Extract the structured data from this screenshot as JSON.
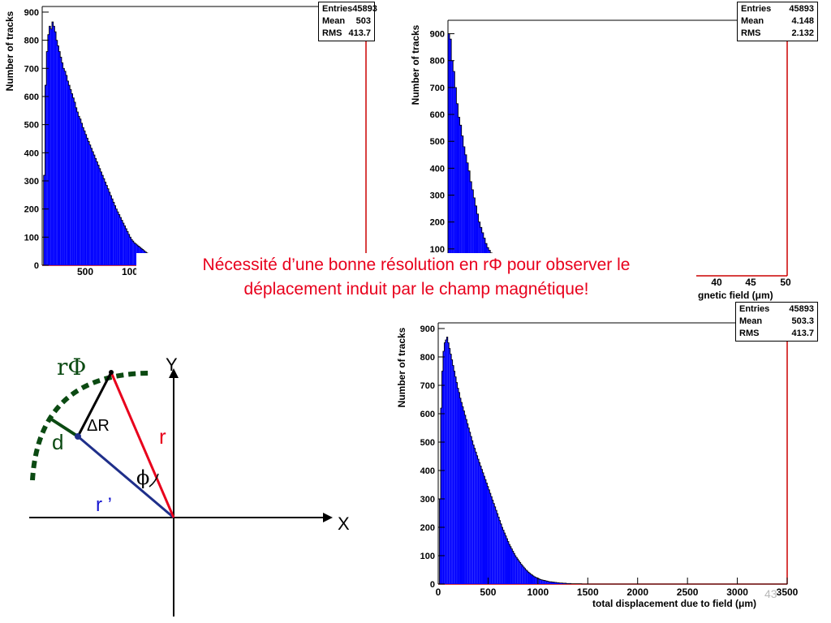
{
  "slide": {
    "caption_line1": "Nécessité d’une bonne résolution en rΦ pour observer le",
    "caption_line2": "déplacement induit par le champ magnétique!",
    "caption_color": "#e8001c",
    "page_number": "43"
  },
  "colors": {
    "histogram_fill": "#0000ff",
    "histogram_edge": "#000000",
    "frame_edge": "#cc0000",
    "arc": "#0b4a12",
    "r_line": "#e8001c",
    "r_prime_line": "#1f2f8a",
    "d_label": "#0b4a12",
    "r_prime_label": "#1515d0",
    "phi_label": "#0b4a12"
  },
  "chart_data": [
    {
      "type": "bar",
      "subtype": "histogram",
      "ylabel": "Number of tracks",
      "xlabel": "",
      "xlim": [
        0,
        2800
      ],
      "ylim": [
        0,
        920
      ],
      "x_ticks_visible": [
        "500",
        "100"
      ],
      "y_ticks": [
        "0",
        "100",
        "200",
        "300",
        "400",
        "500",
        "600",
        "700",
        "800",
        "900"
      ],
      "stats": {
        "entries_label": "Entries",
        "entries": "45893",
        "mean_label": "Mean",
        "mean": "503",
        "rms_label": "RMS",
        "rms": "413.7"
      },
      "bin_width": 12,
      "x_start": 0,
      "values": [
        0,
        320,
        640,
        760,
        820,
        850,
        840,
        865,
        850,
        830,
        800,
        780,
        760,
        740,
        720,
        700,
        690,
        675,
        655,
        640,
        625,
        610,
        595,
        580,
        560,
        545,
        530,
        520,
        505,
        490,
        478,
        465,
        452,
        440,
        428,
        416,
        404,
        392,
        380,
        368,
        356,
        344,
        332,
        320,
        308,
        296,
        284,
        272,
        260,
        248,
        236,
        224,
        212,
        200,
        190,
        180,
        170,
        160,
        150,
        140,
        130,
        120,
        110,
        100,
        92,
        86,
        80,
        76,
        72,
        68,
        64,
        60,
        56,
        52,
        48,
        44,
        40,
        36,
        32,
        28,
        24,
        20
      ]
    },
    {
      "type": "bar",
      "subtype": "histogram",
      "ylabel": "Number of tracks",
      "xlabel": "gnetic field (μm)",
      "xlim": [
        0,
        50
      ],
      "ylim": [
        0,
        950
      ],
      "x_ticks_visible": [
        "40",
        "45",
        "50"
      ],
      "y_ticks": [
        "0",
        "100",
        "200",
        "300",
        "400",
        "500",
        "600",
        "700",
        "800",
        "900"
      ],
      "stats": {
        "entries_label": "Entries",
        "entries": "45893",
        "mean_label": "Mean",
        "mean": "4.148",
        "rms_label": "RMS",
        "rms": "2.132"
      },
      "bin_width": 0.25,
      "x_start": 0,
      "values": [
        900,
        880,
        800,
        760,
        700,
        640,
        590,
        560,
        520,
        480,
        450,
        420,
        390,
        350,
        320,
        290,
        260,
        230,
        200,
        180,
        160,
        140,
        120,
        105,
        95,
        85,
        75,
        65,
        55,
        48,
        42,
        36,
        30,
        25,
        20,
        16,
        12,
        9,
        6,
        4,
        2,
        1
      ]
    },
    {
      "type": "bar",
      "subtype": "histogram",
      "ylabel": "Number of tracks",
      "xlabel": "total displacement due to field (μm)",
      "xlim": [
        0,
        3500
      ],
      "ylim": [
        0,
        920
      ],
      "x_ticks": [
        "0",
        "500",
        "1000",
        "1500",
        "2000",
        "2500",
        "3000",
        "3500"
      ],
      "y_ticks": [
        "0",
        "100",
        "200",
        "300",
        "400",
        "500",
        "600",
        "700",
        "800",
        "900"
      ],
      "stats": {
        "entries_label": "Entries",
        "entries": "45893",
        "mean_label": "Mean",
        "mean": "503.3",
        "rms_label": "RMS",
        "rms": "413.7"
      },
      "bin_width": 12,
      "x_start": 0,
      "values": [
        0,
        300,
        620,
        750,
        820,
        850,
        860,
        870,
        850,
        830,
        810,
        790,
        770,
        750,
        730,
        710,
        690,
        675,
        655,
        640,
        625,
        610,
        595,
        580,
        565,
        550,
        535,
        520,
        505,
        490,
        478,
        465,
        452,
        440,
        428,
        416,
        404,
        392,
        380,
        368,
        356,
        344,
        332,
        320,
        308,
        296,
        284,
        272,
        260,
        248,
        236,
        224,
        212,
        200,
        190,
        180,
        170,
        160,
        150,
        140,
        132,
        124,
        116,
        108,
        100,
        94,
        88,
        82,
        76,
        70,
        65,
        60,
        55,
        50,
        46,
        42,
        38,
        35,
        32,
        29,
        26,
        24,
        22,
        20,
        18,
        16,
        15,
        14,
        13,
        12,
        11,
        10,
        9,
        8,
        8,
        7,
        7,
        6,
        6,
        5,
        5,
        4,
        4,
        4,
        3,
        3,
        3,
        2,
        2,
        2,
        2,
        1,
        1,
        1,
        1,
        1,
        1,
        1,
        1,
        1,
        0,
        0,
        0,
        0,
        0,
        0,
        0,
        0,
        0,
        0,
        0,
        0,
        0,
        0,
        0,
        0,
        0,
        0,
        0,
        0,
        0,
        0,
        0,
        0,
        0,
        0,
        0,
        0,
        0,
        0,
        0,
        0,
        0,
        0,
        0,
        0,
        0,
        0,
        0,
        0,
        0,
        0,
        0,
        0,
        0,
        0,
        0,
        0,
        0,
        0,
        0,
        0,
        0,
        0,
        0,
        0,
        0,
        0,
        0,
        0,
        0,
        0,
        0,
        0,
        0,
        0,
        0,
        0,
        0,
        0,
        0,
        0,
        0,
        0,
        0,
        0,
        0,
        0,
        0,
        0,
        0,
        0,
        0,
        0,
        0,
        0,
        0,
        0,
        0,
        0,
        0,
        0,
        0,
        0,
        0,
        0,
        0,
        0,
        0,
        0,
        0,
        0,
        0,
        0,
        0,
        0,
        0,
        0,
        0,
        0,
        0,
        0,
        0,
        0,
        0,
        0,
        0,
        0,
        0,
        0,
        0,
        0,
        0,
        0,
        0,
        0,
        0,
        0,
        0,
        0,
        0,
        0,
        0,
        0,
        0,
        0,
        0,
        0,
        0,
        0,
        0,
        0,
        0,
        0,
        0,
        0,
        0,
        0,
        0,
        0,
        0,
        0,
        0,
        0,
        0,
        0,
        0,
        0,
        0,
        0,
        0,
        0,
        0,
        0,
        0,
        0,
        0,
        0,
        0,
        0,
        0,
        0,
        0,
        0,
        0,
        0,
        0,
        0,
        0,
        0,
        0,
        0,
        0,
        0,
        0,
        0,
        0,
        0,
        0,
        0,
        0,
        0,
        0,
        0,
        0
      ]
    }
  ],
  "diagram": {
    "label_rphi": "rΦ",
    "label_y": "Y",
    "label_x": "X",
    "label_d": "d",
    "label_deltaR": "ΔR",
    "label_r": "r",
    "label_phi": "ϕ",
    "label_rprime": "r ’"
  }
}
